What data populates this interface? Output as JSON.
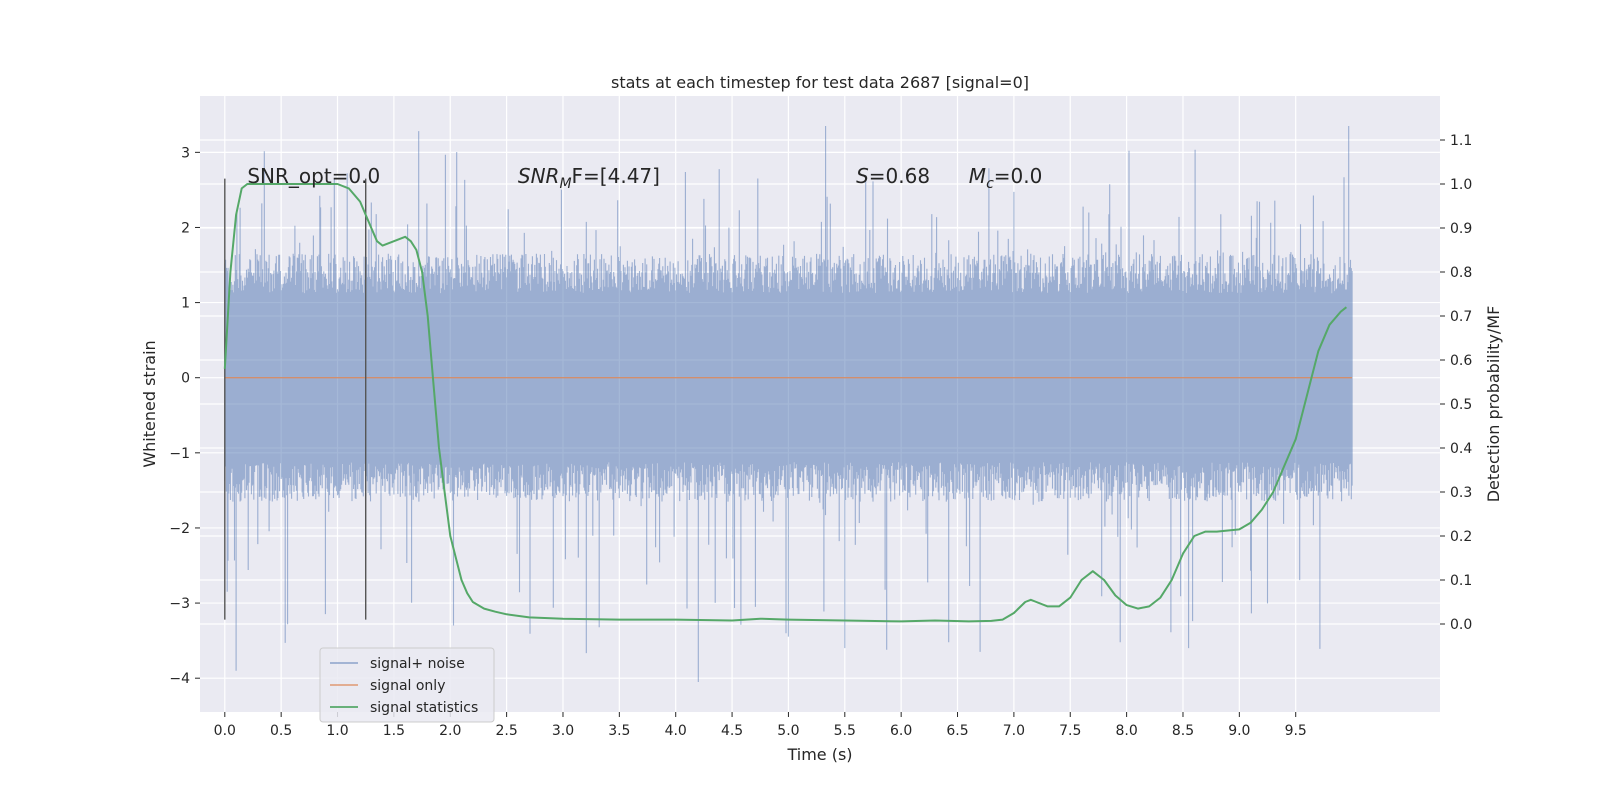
{
  "chart_data": {
    "type": "line",
    "title": "stats at each timestep for test data 2687 [signal=0]",
    "xlabel": "Time (s)",
    "ylabel_left": "Whitened strain",
    "ylabel_right": "Detection probability/MF",
    "xlim": [
      -0.22,
      10.78
    ],
    "ylim_left": [
      -4.45,
      3.75
    ],
    "ylim_right": [
      -0.2,
      1.2
    ],
    "x_ticks": [
      "0.0",
      "0.5",
      "1.0",
      "1.5",
      "2.0",
      "2.5",
      "3.0",
      "3.5",
      "4.0",
      "4.5",
      "5.0",
      "5.5",
      "6.0",
      "6.5",
      "7.0",
      "7.5",
      "8.0",
      "8.5",
      "9.0",
      "9.5"
    ],
    "y_ticks_left": [
      "3",
      "2",
      "1",
      "0",
      "−1",
      "−2",
      "−3",
      "−4"
    ],
    "y_ticks_right": [
      "1.1",
      "1.0",
      "0.9",
      "0.8",
      "0.7",
      "0.6",
      "0.5",
      "0.4",
      "0.3",
      "0.2",
      "0.1",
      "0.0"
    ],
    "grid": true,
    "legend_position": "lower-left",
    "colors": {
      "background": "#eaeaf2",
      "grid": "#ffffff",
      "noise": "#4c72b0",
      "signal": "#dd8452",
      "stats": "#55a868",
      "vline": "#555555"
    },
    "annotations": [
      {
        "text": "SNR_opt=0.0",
        "x": 0.2,
        "y_right": 1.0
      },
      {
        "text": "SNR",
        "sub": "M",
        "suffix": "F=[4.47]",
        "x": 2.6,
        "y_right": 1.0
      },
      {
        "text": "S",
        "suffix": "=0.68",
        "x": 5.6,
        "y_right": 1.0
      },
      {
        "text": "M",
        "sub": "c",
        "suffix": "=0.0",
        "x": 6.6,
        "y_right": 1.0
      }
    ],
    "vlines": [
      {
        "x": 0.0,
        "y_bottom": -3.22,
        "y_top": 2.65
      },
      {
        "x": 1.25,
        "y_bottom": -3.22,
        "y_top": 2.65
      }
    ],
    "series": [
      {
        "name": "signal+ noise",
        "axis": "left",
        "x_range": [
          0.0,
          10.0
        ],
        "envelope_bulk": [
          -1.5,
          1.5
        ],
        "envelope_peaks": [
          -4.05,
          3.35
        ]
      },
      {
        "name": "signal only",
        "axis": "left",
        "x": [
          0.0,
          10.0
        ],
        "y": [
          0.0,
          0.0
        ]
      },
      {
        "name": "signal statistics",
        "axis": "right",
        "x": [
          0.0,
          0.05,
          0.1,
          0.15,
          0.2,
          0.3,
          0.5,
          0.7,
          0.9,
          1.0,
          1.1,
          1.2,
          1.3,
          1.35,
          1.4,
          1.5,
          1.6,
          1.65,
          1.7,
          1.75,
          1.8,
          1.85,
          1.9,
          1.95,
          2.0,
          2.05,
          2.1,
          2.15,
          2.2,
          2.3,
          2.4,
          2.5,
          2.7,
          3.0,
          3.5,
          4.0,
          4.5,
          4.75,
          5.0,
          5.5,
          6.0,
          6.3,
          6.6,
          6.8,
          6.9,
          7.0,
          7.1,
          7.15,
          7.2,
          7.3,
          7.4,
          7.5,
          7.6,
          7.7,
          7.8,
          7.9,
          8.0,
          8.1,
          8.2,
          8.3,
          8.4,
          8.5,
          8.6,
          8.7,
          8.8,
          9.0,
          9.1,
          9.2,
          9.3,
          9.4,
          9.5,
          9.6,
          9.7,
          9.8,
          9.9,
          9.95
        ],
        "y": [
          0.58,
          0.8,
          0.93,
          0.99,
          1.0,
          1.0,
          1.0,
          1.0,
          1.0,
          1.0,
          0.99,
          0.96,
          0.9,
          0.87,
          0.86,
          0.87,
          0.88,
          0.87,
          0.85,
          0.8,
          0.7,
          0.55,
          0.4,
          0.3,
          0.2,
          0.15,
          0.1,
          0.07,
          0.05,
          0.035,
          0.028,
          0.022,
          0.015,
          0.012,
          0.01,
          0.01,
          0.008,
          0.012,
          0.01,
          0.008,
          0.006,
          0.008,
          0.006,
          0.007,
          0.01,
          0.025,
          0.05,
          0.055,
          0.05,
          0.04,
          0.04,
          0.06,
          0.1,
          0.12,
          0.1,
          0.065,
          0.043,
          0.035,
          0.04,
          0.06,
          0.1,
          0.16,
          0.2,
          0.21,
          0.21,
          0.215,
          0.23,
          0.26,
          0.3,
          0.36,
          0.42,
          0.52,
          0.62,
          0.68,
          0.71,
          0.72
        ]
      }
    ]
  }
}
